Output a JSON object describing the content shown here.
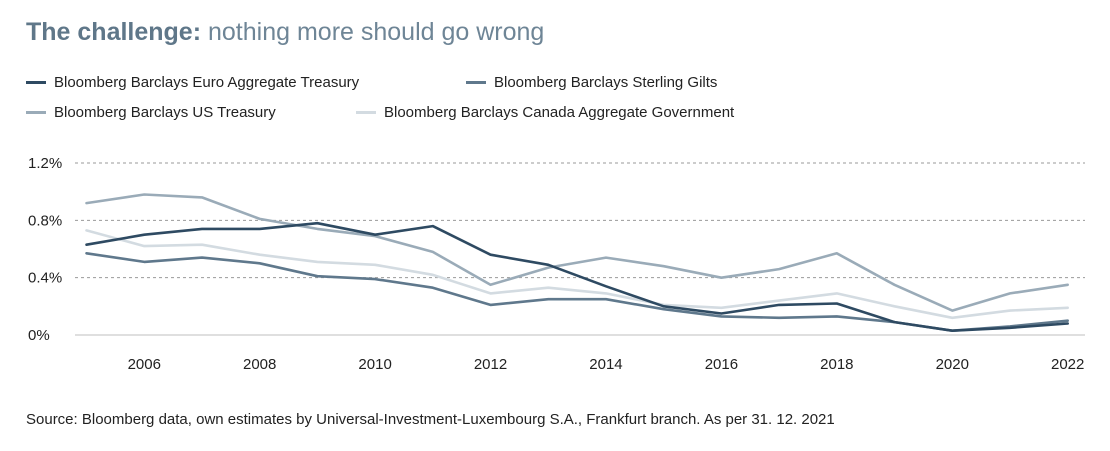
{
  "title": {
    "bold": "The challenge:",
    "rest": "nothing more should go wrong"
  },
  "source": "Source: Bloomberg data, own estimates by Universal-Investment-Luxembourg S.A., Frankfurt branch. As per 31. 12. 2021",
  "chart_data": {
    "type": "line",
    "title": "The challenge: nothing more should go wrong",
    "xlabel": "",
    "ylabel": "",
    "x": [
      2005,
      2006,
      2007,
      2008,
      2009,
      2010,
      2011,
      2012,
      2013,
      2014,
      2015,
      2016,
      2017,
      2018,
      2019,
      2020,
      2021,
      2022
    ],
    "xticks": [
      2006,
      2008,
      2010,
      2012,
      2014,
      2016,
      2018,
      2020,
      2022
    ],
    "xlim": [
      2004.8,
      2022.3
    ],
    "yticks": [
      0,
      0.4,
      0.8,
      1.2
    ],
    "ytick_labels": [
      "0%",
      "0.4%",
      "0.8%",
      "1.2%"
    ],
    "ylim": [
      0,
      1.2
    ],
    "grid": "horizontal dashed",
    "legend_position": "top-left",
    "series": [
      {
        "name": "Bloomberg Barclays Euro Aggregate Treasury",
        "color": "#2e4a62",
        "values": [
          0.63,
          0.7,
          0.74,
          0.74,
          0.78,
          0.7,
          0.76,
          0.56,
          0.49,
          0.34,
          0.2,
          0.15,
          0.21,
          0.22,
          0.09,
          0.03,
          0.05,
          0.08
        ]
      },
      {
        "name": "Bloomberg Barclays Sterling Gilts",
        "color": "#5f788c",
        "values": [
          0.57,
          0.51,
          0.54,
          0.5,
          0.41,
          0.39,
          0.33,
          0.21,
          0.25,
          0.25,
          0.18,
          0.13,
          0.12,
          0.13,
          0.09,
          0.03,
          0.06,
          0.1
        ]
      },
      {
        "name": "Bloomberg Barclays US Treasury",
        "color": "#9aabb8",
        "values": [
          0.92,
          0.98,
          0.96,
          0.81,
          0.74,
          0.69,
          0.58,
          0.35,
          0.47,
          0.54,
          0.48,
          0.4,
          0.46,
          0.57,
          0.35,
          0.17,
          0.29,
          0.35
        ]
      },
      {
        "name": "Bloomberg Barclays Canada Aggregate Government",
        "color": "#d3dbe1",
        "values": [
          0.73,
          0.62,
          0.63,
          0.56,
          0.51,
          0.49,
          0.42,
          0.29,
          0.33,
          0.29,
          0.21,
          0.19,
          0.24,
          0.29,
          0.2,
          0.12,
          0.17,
          0.19
        ]
      }
    ]
  }
}
